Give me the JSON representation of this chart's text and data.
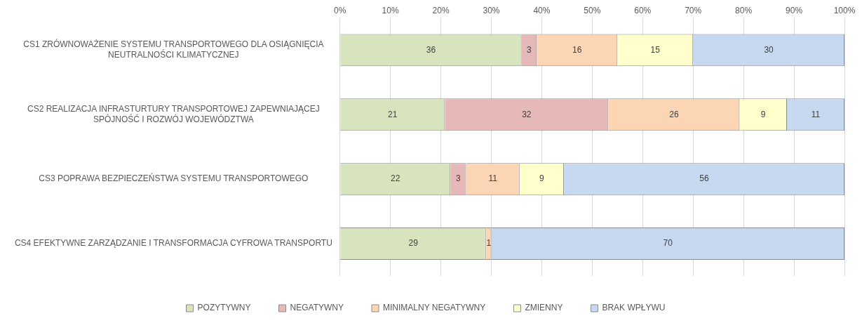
{
  "chart_data": {
    "type": "bar",
    "orientation": "horizontal",
    "stacked": true,
    "categories": [
      "CS1 ZRÓWNOWAŻENIE SYSTEMU TRANSPORTOWEGO DLA OSIĄGNIĘCIA NEUTRALNOŚCI KLIMATYCZNEJ",
      "CS2 REALIZACJA INFRASTURTURY TRANSPORTOWEJ ZAPEWNIAJĄCEJ SPÓJNOŚĆ I ROZWÓJ WOJEWÓDZTWA",
      "CS3 POPRAWA BEZPIECZEŃSTWA SYSTEMU TRANSPORTOWEGO",
      "CS4 EFEKTYWNE ZARZĄDZANIE I TRANSFORMACJA CYFROWA TRANSPORTU"
    ],
    "series": [
      {
        "name": "POZYTYWNY",
        "color": "#d7e4bd",
        "values": [
          36,
          20.8,
          21.9,
          29
        ],
        "value_labels": [
          "36",
          "21",
          "22",
          "29"
        ]
      },
      {
        "name": "NEGATYWNY",
        "color": "#e6b9b8",
        "values": [
          3,
          32.4,
          3.1,
          0
        ],
        "value_labels": [
          "3",
          "32",
          "3",
          null
        ]
      },
      {
        "name": "MINIMALNY NEGATYWNY",
        "color": "#fcd5b5",
        "values": [
          16,
          26.0,
          10.6,
          1
        ],
        "value_labels": [
          "16",
          "26",
          "11",
          "1"
        ]
      },
      {
        "name": "ZMIENNY",
        "color": "#ffffcc",
        "values": [
          15,
          9.4,
          8.8,
          0
        ],
        "value_labels": [
          "15",
          "9",
          "9",
          null
        ]
      },
      {
        "name": "BRAK WPŁYWU",
        "color": "#c6d9f1",
        "values": [
          30,
          11.4,
          55.6,
          70
        ],
        "value_labels": [
          "30",
          "11",
          "56",
          "70"
        ]
      }
    ],
    "xlim": [
      0,
      100
    ],
    "xticks": [
      {
        "value": 0,
        "label": "0%"
      },
      {
        "value": 10,
        "label": "10%"
      },
      {
        "value": 20,
        "label": "20%"
      },
      {
        "value": 30,
        "label": "30%"
      },
      {
        "value": 40,
        "label": "40%"
      },
      {
        "value": 50,
        "label": "50%"
      },
      {
        "value": 60,
        "label": "60%"
      },
      {
        "value": 70,
        "label": "70%"
      },
      {
        "value": 80,
        "label": "80%"
      },
      {
        "value": 90,
        "label": "90%"
      },
      {
        "value": 100,
        "label": "100%"
      }
    ],
    "grid": "x",
    "legend": "bottom"
  }
}
